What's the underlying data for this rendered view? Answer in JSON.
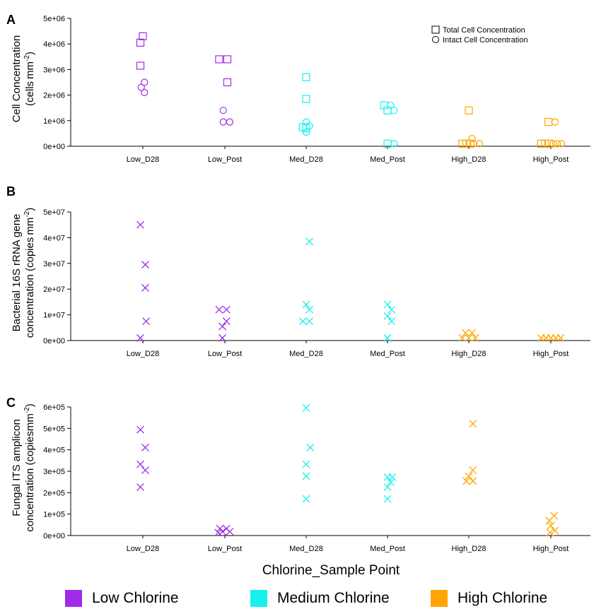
{
  "figure": {
    "x_axis_title": "Chlorine_Sample Point",
    "legend": {
      "items": [
        {
          "label": "Low Chlorine",
          "color": "#a02bea"
        },
        {
          "label": "Medium Chlorine",
          "color": "#18f0ee"
        },
        {
          "label": "High Chlorine",
          "color": "#ffa500"
        }
      ]
    }
  },
  "chart_data": [
    {
      "panel": "A",
      "type": "scatter",
      "ylabel_lines": [
        "Cell Concentration",
        "(cells"
      ],
      "ylabel_unit": "mm",
      "ylabel_exp": "-2",
      "ylabel_close": ")",
      "categories": [
        "Low_D28",
        "Low_Post",
        "Med_D28",
        "Med_Post",
        "High_D28",
        "High_Post"
      ],
      "ylim": [
        0,
        5000000
      ],
      "yticks": [
        "0e+00",
        "1e+06",
        "2e+06",
        "3e+06",
        "4e+06",
        "5e+06"
      ],
      "legend_position": "top-right",
      "series": [
        {
          "name": "Total Cell Concentration",
          "marker": "square",
          "points": [
            {
              "cat": 0,
              "x": 0.0,
              "y": 4300000
            },
            {
              "cat": 0,
              "x": -0.03,
              "y": 4050000
            },
            {
              "cat": 0,
              "x": -0.03,
              "y": 3150000
            },
            {
              "cat": 1,
              "x": -0.07,
              "y": 3400000
            },
            {
              "cat": 1,
              "x": 0.03,
              "y": 3400000
            },
            {
              "cat": 1,
              "x": 0.03,
              "y": 2500000
            },
            {
              "cat": 2,
              "x": 0.0,
              "y": 2700000
            },
            {
              "cat": 2,
              "x": 0.0,
              "y": 1850000
            },
            {
              "cat": 2,
              "x": -0.04,
              "y": 750000
            },
            {
              "cat": 2,
              "x": 0.0,
              "y": 700000
            },
            {
              "cat": 3,
              "x": -0.04,
              "y": 1600000
            },
            {
              "cat": 3,
              "x": 0.0,
              "y": 1400000
            },
            {
              "cat": 3,
              "x": 0.0,
              "y": 100000
            },
            {
              "cat": 4,
              "x": 0.0,
              "y": 1400000
            },
            {
              "cat": 4,
              "x": -0.08,
              "y": 100000
            },
            {
              "cat": 4,
              "x": -0.03,
              "y": 100000
            },
            {
              "cat": 4,
              "x": 0.02,
              "y": 100000
            },
            {
              "cat": 5,
              "x": -0.03,
              "y": 950000
            },
            {
              "cat": 5,
              "x": -0.12,
              "y": 100000
            },
            {
              "cat": 5,
              "x": -0.07,
              "y": 100000
            },
            {
              "cat": 5,
              "x": -0.02,
              "y": 100000
            }
          ]
        },
        {
          "name": "Intact Cell Concentration",
          "marker": "circle",
          "points": [
            {
              "cat": 0,
              "x": 0.02,
              "y": 2500000
            },
            {
              "cat": 0,
              "x": -0.02,
              "y": 2300000
            },
            {
              "cat": 0,
              "x": 0.02,
              "y": 2100000
            },
            {
              "cat": 1,
              "x": -0.02,
              "y": 1400000
            },
            {
              "cat": 1,
              "x": -0.02,
              "y": 950000
            },
            {
              "cat": 1,
              "x": 0.06,
              "y": 950000
            },
            {
              "cat": 2,
              "x": 0.0,
              "y": 950000
            },
            {
              "cat": 2,
              "x": 0.04,
              "y": 800000
            },
            {
              "cat": 2,
              "x": 0.0,
              "y": 550000
            },
            {
              "cat": 3,
              "x": 0.04,
              "y": 1600000
            },
            {
              "cat": 3,
              "x": 0.08,
              "y": 1400000
            },
            {
              "cat": 3,
              "x": 0.08,
              "y": 100000
            },
            {
              "cat": 4,
              "x": 0.04,
              "y": 300000
            },
            {
              "cat": 4,
              "x": 0.06,
              "y": 100000
            },
            {
              "cat": 4,
              "x": 0.13,
              "y": 100000
            },
            {
              "cat": 5,
              "x": 0.05,
              "y": 950000
            },
            {
              "cat": 5,
              "x": 0.03,
              "y": 100000
            },
            {
              "cat": 5,
              "x": 0.08,
              "y": 100000
            },
            {
              "cat": 5,
              "x": 0.13,
              "y": 100000
            }
          ]
        }
      ]
    },
    {
      "panel": "B",
      "type": "scatter",
      "ylabel_lines": [
        "Bacterial 16S rRNA gene",
        "concentration (copies"
      ],
      "ylabel_unit": "mm",
      "ylabel_exp": "-2",
      "ylabel_close": ")",
      "categories": [
        "Low_D28",
        "Low_Post",
        "Med_D28",
        "Med_Post",
        "High_D28",
        "High_Post"
      ],
      "ylim": [
        0,
        50000000
      ],
      "yticks": [
        "0e+00",
        "1e+07",
        "2e+07",
        "3e+07",
        "4e+07",
        "5e+07"
      ],
      "series": [
        {
          "marker": "x",
          "points": [
            {
              "cat": 0,
              "x": -0.03,
              "y": 45000000
            },
            {
              "cat": 0,
              "x": 0.03,
              "y": 29500000
            },
            {
              "cat": 0,
              "x": 0.03,
              "y": 20500000
            },
            {
              "cat": 0,
              "x": 0.04,
              "y": 7500000
            },
            {
              "cat": 0,
              "x": -0.03,
              "y": 1000000
            },
            {
              "cat": 1,
              "x": -0.07,
              "y": 12000000
            },
            {
              "cat": 1,
              "x": 0.02,
              "y": 12000000
            },
            {
              "cat": 1,
              "x": 0.02,
              "y": 7500000
            },
            {
              "cat": 1,
              "x": -0.03,
              "y": 5500000
            },
            {
              "cat": 1,
              "x": -0.03,
              "y": 1000000
            },
            {
              "cat": 2,
              "x": 0.04,
              "y": 38500000
            },
            {
              "cat": 2,
              "x": 0.0,
              "y": 14000000
            },
            {
              "cat": 2,
              "x": 0.04,
              "y": 12000000
            },
            {
              "cat": 2,
              "x": -0.04,
              "y": 7500000
            },
            {
              "cat": 2,
              "x": 0.04,
              "y": 7500000
            },
            {
              "cat": 3,
              "x": 0.0,
              "y": 14000000
            },
            {
              "cat": 3,
              "x": 0.05,
              "y": 12000000
            },
            {
              "cat": 3,
              "x": 0.0,
              "y": 9500000
            },
            {
              "cat": 3,
              "x": 0.05,
              "y": 7500000
            },
            {
              "cat": 3,
              "x": 0.0,
              "y": 1000000
            },
            {
              "cat": 4,
              "x": -0.04,
              "y": 3000000
            },
            {
              "cat": 4,
              "x": 0.04,
              "y": 3000000
            },
            {
              "cat": 4,
              "x": -0.08,
              "y": 1000000
            },
            {
              "cat": 4,
              "x": 0.0,
              "y": 1000000
            },
            {
              "cat": 4,
              "x": 0.08,
              "y": 1000000
            },
            {
              "cat": 5,
              "x": -0.12,
              "y": 1000000
            },
            {
              "cat": 5,
              "x": -0.06,
              "y": 1000000
            },
            {
              "cat": 5,
              "x": 0.0,
              "y": 1000000
            },
            {
              "cat": 5,
              "x": 0.06,
              "y": 1000000
            },
            {
              "cat": 5,
              "x": 0.12,
              "y": 1000000
            }
          ]
        }
      ]
    },
    {
      "panel": "C",
      "type": "scatter",
      "ylabel_lines": [
        "Fungal ITS amplicon",
        "concentration (copiesmm"
      ],
      "ylabel_unit": "",
      "ylabel_exp": "-2",
      "ylabel_close": ")",
      "categories": [
        "Low_D28",
        "Low_Post",
        "Med_D28",
        "Med_Post",
        "High_D28",
        "High_Post"
      ],
      "ylim": [
        0,
        650000
      ],
      "yticks": [
        "0e+00",
        "1e+05",
        "2e+05",
        "3e+05",
        "4e+05",
        "5e+05",
        "6e+05"
      ],
      "series": [
        {
          "marker": "x",
          "points": [
            {
              "cat": 0,
              "x": -0.03,
              "y": 535000
            },
            {
              "cat": 0,
              "x": 0.03,
              "y": 445000
            },
            {
              "cat": 0,
              "x": -0.03,
              "y": 360000
            },
            {
              "cat": 0,
              "x": 0.03,
              "y": 330000
            },
            {
              "cat": 0,
              "x": -0.03,
              "y": 245000
            },
            {
              "cat": 1,
              "x": -0.06,
              "y": 35000
            },
            {
              "cat": 1,
              "x": 0.02,
              "y": 35000
            },
            {
              "cat": 1,
              "x": -0.03,
              "y": 20000
            },
            {
              "cat": 1,
              "x": 0.06,
              "y": 20000
            },
            {
              "cat": 1,
              "x": -0.08,
              "y": 15000
            },
            {
              "cat": 2,
              "x": 0.0,
              "y": 645000
            },
            {
              "cat": 2,
              "x": 0.05,
              "y": 445000
            },
            {
              "cat": 2,
              "x": 0.0,
              "y": 360000
            },
            {
              "cat": 2,
              "x": 0.0,
              "y": 300000
            },
            {
              "cat": 2,
              "x": 0.0,
              "y": 185000
            },
            {
              "cat": 3,
              "x": 0.0,
              "y": 295000
            },
            {
              "cat": 3,
              "x": 0.06,
              "y": 295000
            },
            {
              "cat": 3,
              "x": 0.04,
              "y": 270000
            },
            {
              "cat": 3,
              "x": 0.0,
              "y": 245000
            },
            {
              "cat": 3,
              "x": 0.0,
              "y": 185000
            },
            {
              "cat": 4,
              "x": 0.05,
              "y": 565000
            },
            {
              "cat": 4,
              "x": 0.05,
              "y": 330000
            },
            {
              "cat": 4,
              "x": 0.0,
              "y": 300000
            },
            {
              "cat": 4,
              "x": -0.03,
              "y": 275000
            },
            {
              "cat": 4,
              "x": 0.05,
              "y": 275000
            },
            {
              "cat": 5,
              "x": 0.04,
              "y": 100000
            },
            {
              "cat": 5,
              "x": -0.02,
              "y": 75000
            },
            {
              "cat": 5,
              "x": 0.0,
              "y": 50000
            },
            {
              "cat": 5,
              "x": 0.05,
              "y": 25000
            },
            {
              "cat": 5,
              "x": -0.01,
              "y": 15000
            }
          ]
        }
      ]
    }
  ]
}
